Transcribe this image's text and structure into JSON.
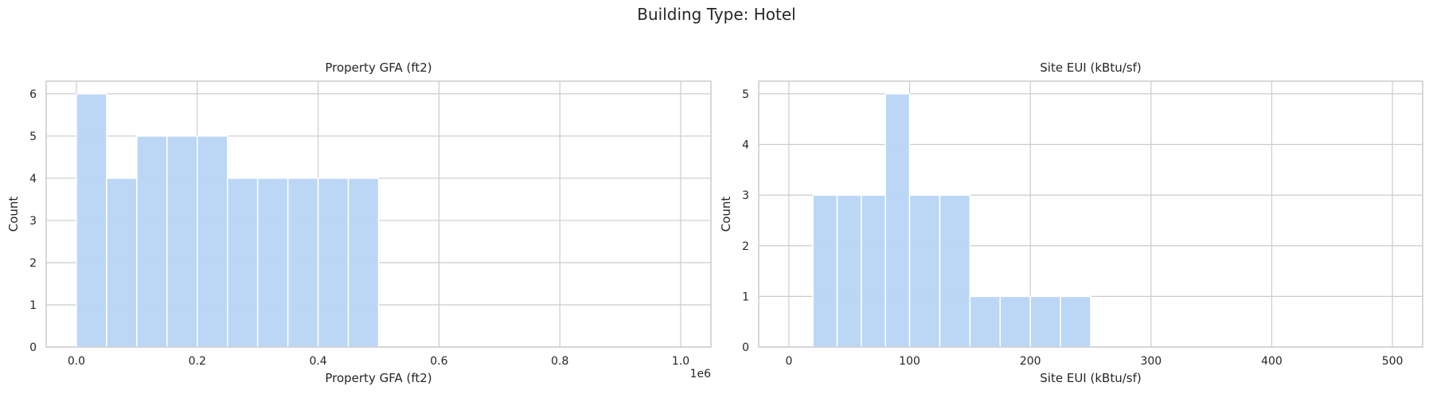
{
  "figure": {
    "suptitle": "Building Type: Hotel"
  },
  "style": {
    "bar_color": "#b7d5f4",
    "bar_edge": "#ffffff",
    "grid_color": "#cccccc",
    "spine_color": "#cccccc"
  },
  "chart_data": [
    {
      "type": "bar",
      "title": "Property GFA (ft2)",
      "xlabel": "Property GFA (ft2)",
      "ylabel": "Count",
      "x_offset_label": "1e6",
      "xlim": [
        -0.05,
        1.05
      ],
      "ylim": [
        0,
        6.3
      ],
      "xticks": [
        0,
        0.2,
        0.4,
        0.6,
        0.8,
        1.0
      ],
      "xtick_labels": [
        "0.0",
        "0.2",
        "0.4",
        "0.6",
        "0.8",
        "1.0"
      ],
      "yticks": [
        0,
        1,
        2,
        3,
        4,
        5,
        6
      ],
      "grid": true,
      "bins": [
        {
          "start": 0.0,
          "end": 0.05,
          "count": 6
        },
        {
          "start": 0.05,
          "end": 0.1,
          "count": 4
        },
        {
          "start": 0.1,
          "end": 0.15,
          "count": 5
        },
        {
          "start": 0.15,
          "end": 0.2,
          "count": 5
        },
        {
          "start": 0.2,
          "end": 0.25,
          "count": 5
        },
        {
          "start": 0.25,
          "end": 0.3,
          "count": 4
        },
        {
          "start": 0.3,
          "end": 0.35,
          "count": 4
        },
        {
          "start": 0.35,
          "end": 0.4,
          "count": 4
        },
        {
          "start": 0.4,
          "end": 0.45,
          "count": 4
        },
        {
          "start": 0.45,
          "end": 0.5,
          "count": 4
        }
      ]
    },
    {
      "type": "bar",
      "title": "Site EUI (kBtu/sf)",
      "xlabel": "Site EUI (kBtu/sf)",
      "ylabel": "Count",
      "xlim": [
        -25,
        525
      ],
      "ylim": [
        0,
        5.25
      ],
      "xticks": [
        0,
        100,
        200,
        300,
        400,
        500
      ],
      "xtick_labels": [
        "0",
        "100",
        "200",
        "300",
        "400",
        "500"
      ],
      "yticks": [
        0,
        1,
        2,
        3,
        4,
        5
      ],
      "grid": true,
      "bins": [
        {
          "start": 20,
          "end": 40,
          "count": 3
        },
        {
          "start": 40,
          "end": 60,
          "count": 3
        },
        {
          "start": 60,
          "end": 80,
          "count": 3
        },
        {
          "start": 80,
          "end": 100,
          "count": 5
        },
        {
          "start": 100,
          "end": 125,
          "count": 3
        },
        {
          "start": 125,
          "end": 150,
          "count": 3
        },
        {
          "start": 150,
          "end": 175,
          "count": 1
        },
        {
          "start": 175,
          "end": 200,
          "count": 1
        },
        {
          "start": 200,
          "end": 225,
          "count": 1
        },
        {
          "start": 225,
          "end": 250,
          "count": 1
        }
      ]
    }
  ]
}
